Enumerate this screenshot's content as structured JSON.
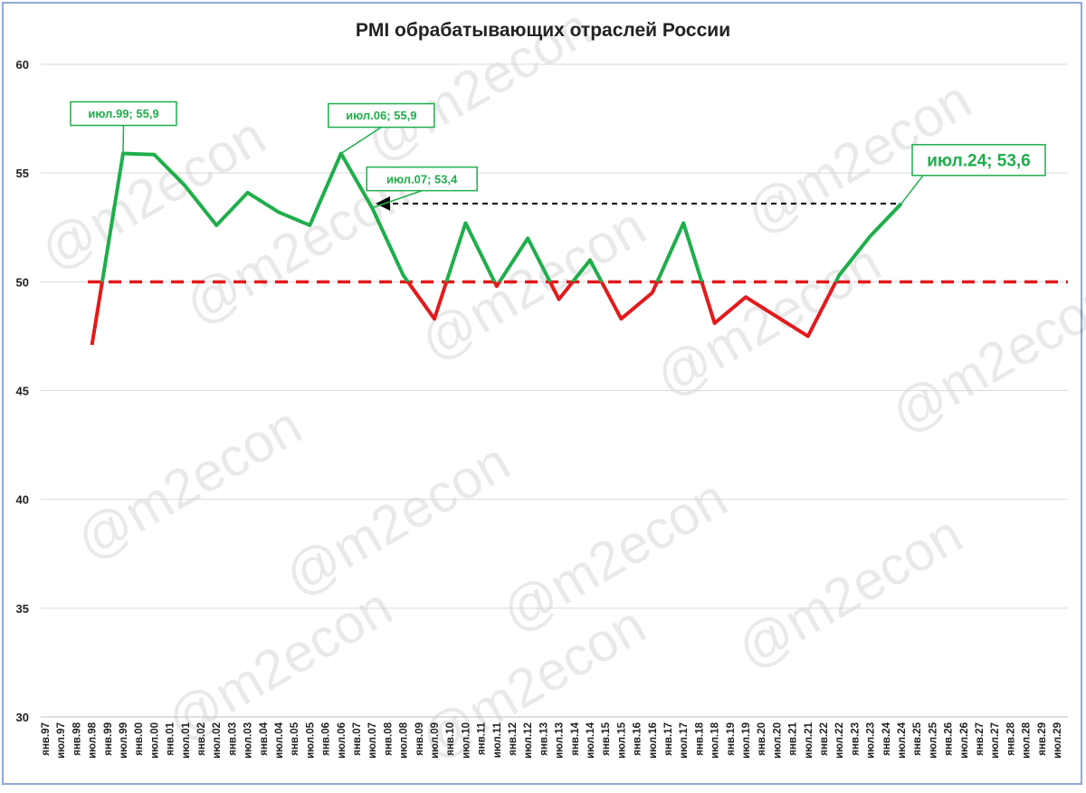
{
  "chart_data": {
    "type": "line",
    "title": "PMI обрабатывающих отраслей России",
    "watermark": "@m2econ",
    "categories": [
      "янв.97",
      "июл.97",
      "янв.98",
      "июл.98",
      "янв.99",
      "июл.99",
      "янв.00",
      "июл.00",
      "янв.01",
      "июл.01",
      "янв.02",
      "июл.02",
      "янв.03",
      "июл.03",
      "янв.04",
      "июл.04",
      "янв.05",
      "июл.05",
      "янв.06",
      "июл.06",
      "янв.07",
      "июл.07",
      "янв.08",
      "июл.08",
      "янв.09",
      "июл.09",
      "янв.10",
      "июл.10",
      "янв.11",
      "июл.11",
      "янв.12",
      "июл.12",
      "янв.13",
      "июл.13",
      "янв.14",
      "июл.14",
      "янв.15",
      "июл.15",
      "янв.16",
      "июл.16",
      "янв.17",
      "июл.17",
      "янв.18",
      "июл.18",
      "янв.19",
      "июл.19",
      "янв.20",
      "июл.20",
      "янв.21",
      "июл.21",
      "янв.22",
      "июл.22",
      "янв.23",
      "июл.23",
      "янв.24",
      "июл.24",
      "янв.25",
      "июл.25",
      "янв.26",
      "июл.26",
      "янв.27",
      "июл.27",
      "янв.28",
      "июл.28",
      "янв.29",
      "июл.29"
    ],
    "series": [
      {
        "name": "PMI",
        "color_above": "#1fae4b",
        "color_below": "#e31a1c",
        "x": [
          "июл.98",
          "июл.99",
          "июл.00",
          "июл.01",
          "июл.02",
          "июл.03",
          "июл.04",
          "июл.05",
          "июл.06",
          "июл.07",
          "июл.08",
          "июл.09",
          "июл.10",
          "июл.11",
          "июл.12",
          "июл.13",
          "июл.14",
          "июл.15",
          "июл.16",
          "июл.17",
          "июл.18",
          "июл.19",
          "июл.20",
          "июл.21",
          "июл.22",
          "июл.23",
          "июл.24"
        ],
        "values": [
          47.1,
          55.9,
          55.85,
          54.4,
          52.6,
          54.1,
          53.2,
          52.6,
          55.9,
          53.4,
          50.3,
          48.3,
          52.7,
          49.8,
          52.0,
          49.2,
          51.0,
          48.3,
          49.5,
          52.7,
          48.1,
          49.3,
          48.4,
          47.5,
          50.3,
          52.1,
          53.6
        ]
      }
    ],
    "threshold": 50,
    "threshold_color": "#e31a1c",
    "annotations": [
      {
        "text": "июл.99; 55,9",
        "point": 1
      },
      {
        "text": "июл.06; 55,9",
        "point": 8
      },
      {
        "text": "июл.07; 53,4",
        "point": 9
      },
      {
        "text": "июл.24; 53,6",
        "point": 26
      }
    ],
    "arrow": {
      "from": 26,
      "to": 9
    },
    "ylim": [
      30,
      60
    ],
    "yticks": [
      30,
      35,
      40,
      45,
      50,
      55,
      60
    ],
    "grid": true
  }
}
